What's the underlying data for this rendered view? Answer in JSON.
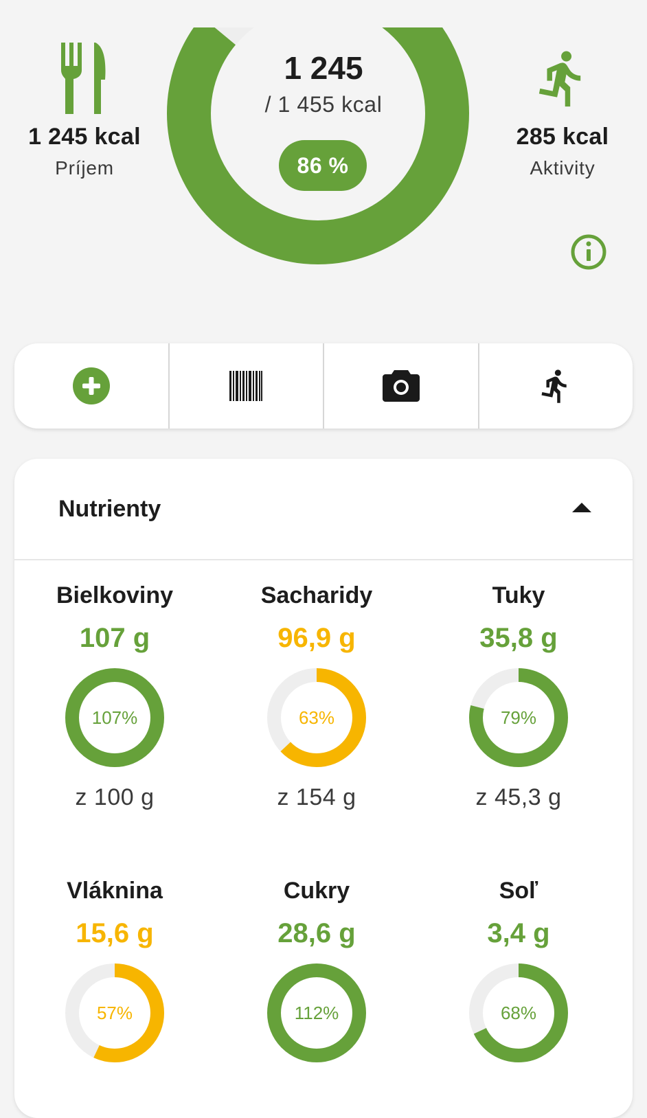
{
  "summary": {
    "intake_value": "1 245 kcal",
    "intake_label": "Príjem",
    "consumed": "1 245",
    "target": "/ 1 455 kcal",
    "percent_label": "86 %",
    "percent": 0.86,
    "activity_value": "285 kcal",
    "activity_label": "Aktivity"
  },
  "colors": {
    "green": "#66a13a",
    "amber": "#f7b500",
    "track": "#eeeeee"
  },
  "actions": [
    {
      "icon": "add-circle-icon"
    },
    {
      "icon": "barcode-icon"
    },
    {
      "icon": "camera-icon"
    },
    {
      "icon": "running-icon"
    }
  ],
  "nutrients": {
    "title": "Nutrienty",
    "items": [
      {
        "name": "Bielkoviny",
        "amount": "107 g",
        "percent_label": "107%",
        "fraction": 1.0,
        "goal": "z 100 g",
        "color": "green"
      },
      {
        "name": "Sacharidy",
        "amount": "96,9 g",
        "percent_label": "63%",
        "fraction": 0.63,
        "goal": "z 154 g",
        "color": "amber"
      },
      {
        "name": "Tuky",
        "amount": "35,8 g",
        "percent_label": "79%",
        "fraction": 0.79,
        "goal": "z 45,3 g",
        "color": "green"
      },
      {
        "name": "Vláknina",
        "amount": "15,6 g",
        "percent_label": "57%",
        "fraction": 0.57,
        "goal": "",
        "color": "amber"
      },
      {
        "name": "Cukry",
        "amount": "28,6 g",
        "percent_label": "112%",
        "fraction": 1.0,
        "goal": "",
        "color": "green"
      },
      {
        "name": "Soľ",
        "amount": "3,4 g",
        "percent_label": "68%",
        "fraction": 0.68,
        "goal": "",
        "color": "green"
      }
    ]
  }
}
